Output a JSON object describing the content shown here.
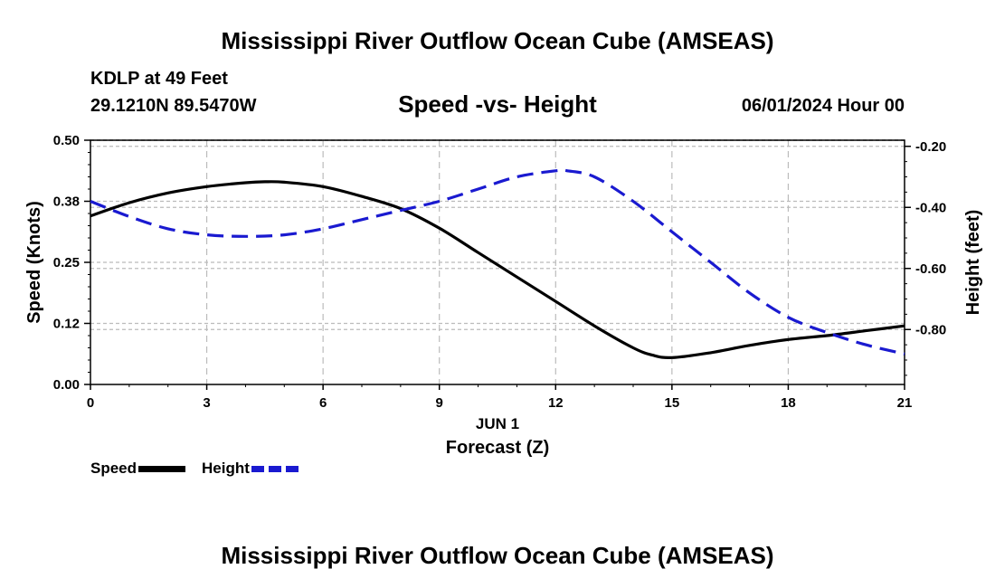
{
  "header": {
    "title": "Mississippi River Outflow Ocean Cube (AMSEAS)",
    "station": "KDLP at 49 Feet",
    "coords": "29.1210N  89.5470W",
    "subtitle": "Speed -vs- Height",
    "datetime": "06/01/2024 Hour 00"
  },
  "footer": {
    "title": "Mississippi River Outflow Ocean Cube (AMSEAS)"
  },
  "legend": {
    "speed_label": "Speed",
    "height_label": "Height"
  },
  "colors": {
    "speed": "#000000",
    "height": "#1a1ad0",
    "grid": "#bbbbbb"
  },
  "chart_data": {
    "type": "line",
    "title": "Speed -vs- Height",
    "xlabel": "Forecast (Z)",
    "xlabel_date": "JUN 1",
    "ylabel": "Speed (Knots)",
    "y2label": "Height (feet)",
    "xlim": [
      0,
      21
    ],
    "ylim": [
      0,
      0.5
    ],
    "y2lim": [
      -0.98,
      -0.18
    ],
    "x_ticks": [
      0,
      3,
      6,
      9,
      12,
      15,
      18,
      21
    ],
    "y_ticks": [
      "0.00",
      "0.12",
      "0.25",
      "0.38",
      "0.50"
    ],
    "y_tick_values": [
      0,
      0.125,
      0.25,
      0.375,
      0.5
    ],
    "y2_ticks": [
      "-0.20",
      "-0.40",
      "-0.60",
      "-0.80"
    ],
    "y2_tick_values": [
      -0.2,
      -0.4,
      -0.6,
      -0.8
    ],
    "grid": true,
    "legend_position": "bottom-left",
    "series": [
      {
        "name": "Speed",
        "axis": "left",
        "style": "solid",
        "x": [
          0,
          1,
          2,
          3,
          4,
          4.5,
          5,
          6,
          7,
          8,
          9,
          10,
          11,
          12,
          13,
          14,
          14.5,
          15,
          16,
          17,
          18,
          19,
          20,
          21
        ],
        "values": [
          0.345,
          0.372,
          0.392,
          0.405,
          0.413,
          0.415,
          0.414,
          0.405,
          0.385,
          0.36,
          0.32,
          0.27,
          0.22,
          0.17,
          0.12,
          0.075,
          0.06,
          0.055,
          0.065,
          0.08,
          0.092,
          0.1,
          0.11,
          0.12
        ]
      },
      {
        "name": "Height",
        "axis": "right",
        "style": "dashed",
        "x": [
          0,
          1,
          2,
          3,
          4,
          5,
          6,
          7,
          8,
          9,
          10,
          11,
          12,
          12.3,
          13,
          14,
          15,
          16,
          17,
          18,
          19,
          20,
          21
        ],
        "values": [
          -0.38,
          -0.43,
          -0.47,
          -0.49,
          -0.495,
          -0.49,
          -0.47,
          -0.44,
          -0.41,
          -0.38,
          -0.34,
          -0.3,
          -0.28,
          -0.28,
          -0.3,
          -0.38,
          -0.48,
          -0.58,
          -0.68,
          -0.76,
          -0.81,
          -0.85,
          -0.88
        ]
      }
    ]
  }
}
